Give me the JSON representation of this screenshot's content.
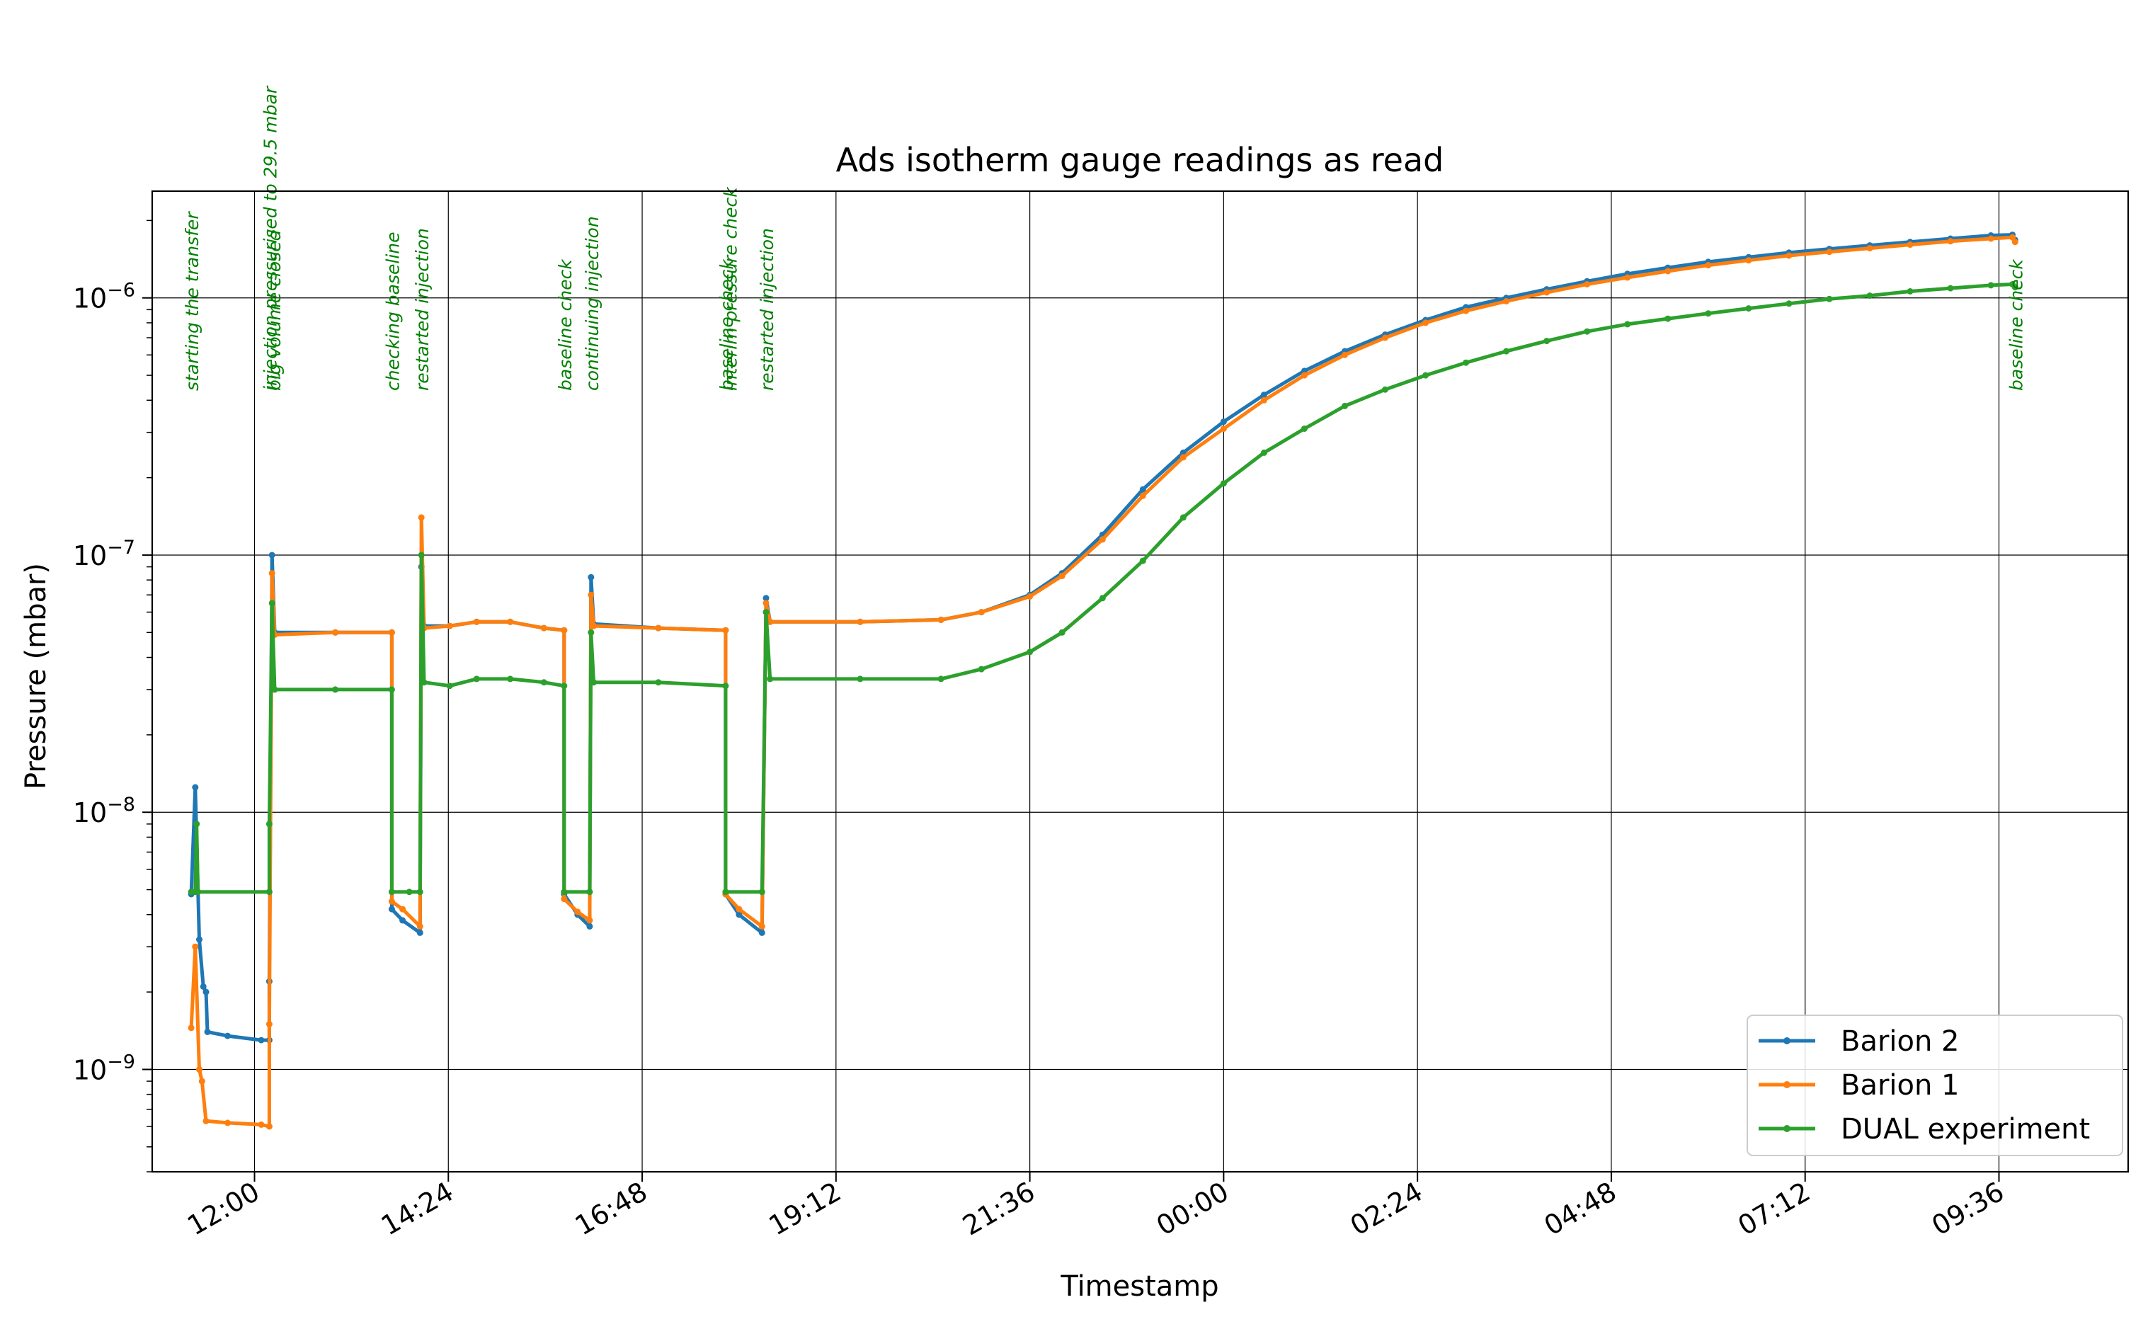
{
  "chart_data": {
    "type": "line",
    "title": "Ads isotherm gauge readings as read",
    "xlabel": "Timestamp",
    "ylabel": "Pressure (mbar)",
    "y_scale": "log",
    "ylim": [
      4e-10,
      2.6e-06
    ],
    "xlim": [
      "10:44",
      "11:12 (+1 day)"
    ],
    "x_ticks": [
      "12:00",
      "14:24",
      "16:48",
      "19:12",
      "21:36",
      "00:00",
      "02:24",
      "04:48",
      "07:12",
      "09:36"
    ],
    "y_ticks": [
      "10^-9",
      "10^-8",
      "10^-7",
      "10^-6"
    ],
    "grid": true,
    "legend": "lower-right",
    "series": [
      {
        "name": "Barion 2",
        "color": "#1f77b4",
        "points": [
          [
            "11:13",
            4.8e-09
          ],
          [
            "11:16",
            1.25e-08
          ],
          [
            "11:19",
            3.2e-09
          ],
          [
            "11:22",
            2.1e-09
          ],
          [
            "11:24",
            2e-09
          ],
          [
            "11:25",
            1.4e-09
          ],
          [
            "11:40",
            1.35e-09
          ],
          [
            "12:05",
            1.3e-09
          ],
          [
            "12:11",
            1.3e-09
          ],
          [
            "12:11",
            2.2e-09
          ],
          [
            "12:13",
            1e-07
          ],
          [
            "12:15",
            5e-08
          ],
          [
            "13:00",
            5e-08
          ],
          [
            "13:42",
            5e-08
          ],
          [
            "13:42",
            4.2e-09
          ],
          [
            "13:50",
            3.8e-09
          ],
          [
            "14:03",
            3.4e-09
          ],
          [
            "14:04",
            9e-08
          ],
          [
            "14:06",
            5.3e-08
          ],
          [
            "14:25",
            5.3e-08
          ],
          [
            "14:45",
            5.5e-08
          ],
          [
            "15:10",
            5.5e-08
          ],
          [
            "15:35",
            5.2e-08
          ],
          [
            "15:50",
            5.1e-08
          ],
          [
            "15:50",
            4.8e-09
          ],
          [
            "16:00",
            4e-09
          ],
          [
            "16:09",
            3.6e-09
          ],
          [
            "16:10",
            8.2e-08
          ],
          [
            "16:12",
            5.4e-08
          ],
          [
            "17:00",
            5.2e-08
          ],
          [
            "17:50",
            5.1e-08
          ],
          [
            "17:50",
            4.8e-09
          ],
          [
            "18:00",
            4e-09
          ],
          [
            "18:17",
            3.4e-09
          ],
          [
            "18:20",
            6.8e-08
          ],
          [
            "18:23",
            5.5e-08
          ],
          [
            "19:30",
            5.5e-08
          ],
          [
            "20:30",
            5.6e-08
          ],
          [
            "21:00",
            6e-08
          ],
          [
            "21:36",
            7e-08
          ],
          [
            "22:00",
            8.5e-08
          ],
          [
            "22:30",
            1.2e-07
          ],
          [
            "23:00",
            1.8e-07
          ],
          [
            "23:30",
            2.5e-07
          ],
          [
            "00:00",
            3.3e-07
          ],
          [
            "00:30",
            4.2e-07
          ],
          [
            "01:00",
            5.2e-07
          ],
          [
            "01:30",
            6.2e-07
          ],
          [
            "02:00",
            7.2e-07
          ],
          [
            "02:30",
            8.2e-07
          ],
          [
            "03:00",
            9.2e-07
          ],
          [
            "03:30",
            1e-06
          ],
          [
            "04:00",
            1.08e-06
          ],
          [
            "04:30",
            1.16e-06
          ],
          [
            "05:00",
            1.24e-06
          ],
          [
            "05:30",
            1.31e-06
          ],
          [
            "06:00",
            1.38e-06
          ],
          [
            "06:30",
            1.44e-06
          ],
          [
            "07:00",
            1.5e-06
          ],
          [
            "07:30",
            1.55e-06
          ],
          [
            "08:00",
            1.6e-06
          ],
          [
            "08:30",
            1.65e-06
          ],
          [
            "09:00",
            1.7e-06
          ],
          [
            "09:30",
            1.75e-06
          ],
          [
            "09:46",
            1.76e-06
          ],
          [
            "09:48",
            1.68e-06
          ]
        ]
      },
      {
        "name": "Barion 1",
        "color": "#ff7f0e",
        "points": [
          [
            "11:13",
            1.45e-09
          ],
          [
            "11:16",
            3e-09
          ],
          [
            "11:19",
            1e-09
          ],
          [
            "11:21",
            9e-10
          ],
          [
            "11:24",
            6.3e-10
          ],
          [
            "11:40",
            6.2e-10
          ],
          [
            "12:05",
            6.1e-10
          ],
          [
            "12:11",
            6e-10
          ],
          [
            "12:11",
            1.5e-09
          ],
          [
            "12:13",
            8.5e-08
          ],
          [
            "12:15",
            4.9e-08
          ],
          [
            "13:00",
            5e-08
          ],
          [
            "13:42",
            5e-08
          ],
          [
            "13:42",
            4.5e-09
          ],
          [
            "13:50",
            4.2e-09
          ],
          [
            "14:03",
            3.6e-09
          ],
          [
            "14:04",
            1.4e-07
          ],
          [
            "14:06",
            5.2e-08
          ],
          [
            "14:25",
            5.3e-08
          ],
          [
            "14:45",
            5.5e-08
          ],
          [
            "15:10",
            5.5e-08
          ],
          [
            "15:35",
            5.2e-08
          ],
          [
            "15:50",
            5.1e-08
          ],
          [
            "15:50",
            4.6e-09
          ],
          [
            "16:00",
            4.1e-09
          ],
          [
            "16:09",
            3.8e-09
          ],
          [
            "16:10",
            7e-08
          ],
          [
            "16:12",
            5.3e-08
          ],
          [
            "17:00",
            5.2e-08
          ],
          [
            "17:50",
            5.1e-08
          ],
          [
            "17:50",
            4.8e-09
          ],
          [
            "18:00",
            4.2e-09
          ],
          [
            "18:17",
            3.6e-09
          ],
          [
            "18:20",
            6.5e-08
          ],
          [
            "18:23",
            5.5e-08
          ],
          [
            "19:30",
            5.5e-08
          ],
          [
            "20:30",
            5.6e-08
          ],
          [
            "21:00",
            6e-08
          ],
          [
            "21:36",
            6.9e-08
          ],
          [
            "22:00",
            8.3e-08
          ],
          [
            "22:30",
            1.15e-07
          ],
          [
            "23:00",
            1.7e-07
          ],
          [
            "23:30",
            2.4e-07
          ],
          [
            "00:00",
            3.1e-07
          ],
          [
            "00:30",
            4e-07
          ],
          [
            "01:00",
            5e-07
          ],
          [
            "01:30",
            6e-07
          ],
          [
            "02:00",
            7e-07
          ],
          [
            "02:30",
            8e-07
          ],
          [
            "03:00",
            8.9e-07
          ],
          [
            "03:30",
            9.7e-07
          ],
          [
            "04:00",
            1.05e-06
          ],
          [
            "04:30",
            1.13e-06
          ],
          [
            "05:00",
            1.2e-06
          ],
          [
            "05:30",
            1.27e-06
          ],
          [
            "06:00",
            1.34e-06
          ],
          [
            "06:30",
            1.4e-06
          ],
          [
            "07:00",
            1.46e-06
          ],
          [
            "07:30",
            1.51e-06
          ],
          [
            "08:00",
            1.56e-06
          ],
          [
            "08:30",
            1.61e-06
          ],
          [
            "09:00",
            1.66e-06
          ],
          [
            "09:30",
            1.7e-06
          ],
          [
            "09:46",
            1.72e-06
          ],
          [
            "09:48",
            1.65e-06
          ]
        ]
      },
      {
        "name": "DUAL experiment",
        "color": "#2ca02c",
        "points": [
          [
            "11:13",
            4.9e-09
          ],
          [
            "11:16",
            4.9e-09
          ],
          [
            "11:17",
            9e-09
          ],
          [
            "11:18",
            4.9e-09
          ],
          [
            "12:11",
            4.9e-09
          ],
          [
            "12:11",
            9e-09
          ],
          [
            "12:13",
            6.5e-08
          ],
          [
            "12:15",
            3e-08
          ],
          [
            "13:00",
            3e-08
          ],
          [
            "13:42",
            3e-08
          ],
          [
            "13:42",
            4.9e-09
          ],
          [
            "13:55",
            4.9e-09
          ],
          [
            "14:03",
            4.9e-09
          ],
          [
            "14:04",
            1e-07
          ],
          [
            "14:06",
            3.2e-08
          ],
          [
            "14:25",
            3.1e-08
          ],
          [
            "14:45",
            3.3e-08
          ],
          [
            "15:10",
            3.3e-08
          ],
          [
            "15:35",
            3.2e-08
          ],
          [
            "15:50",
            3.1e-08
          ],
          [
            "15:50",
            4.9e-09
          ],
          [
            "16:09",
            4.9e-09
          ],
          [
            "16:10",
            5e-08
          ],
          [
            "16:12",
            3.2e-08
          ],
          [
            "17:00",
            3.2e-08
          ],
          [
            "17:50",
            3.1e-08
          ],
          [
            "17:50",
            4.9e-09
          ],
          [
            "18:17",
            4.9e-09
          ],
          [
            "18:20",
            6e-08
          ],
          [
            "18:23",
            3.3e-08
          ],
          [
            "19:30",
            3.3e-08
          ],
          [
            "20:30",
            3.3e-08
          ],
          [
            "21:00",
            3.6e-08
          ],
          [
            "21:36",
            4.2e-08
          ],
          [
            "22:00",
            5e-08
          ],
          [
            "22:30",
            6.8e-08
          ],
          [
            "23:00",
            9.5e-08
          ],
          [
            "23:30",
            1.4e-07
          ],
          [
            "00:00",
            1.9e-07
          ],
          [
            "00:30",
            2.5e-07
          ],
          [
            "01:00",
            3.1e-07
          ],
          [
            "01:30",
            3.8e-07
          ],
          [
            "02:00",
            4.4e-07
          ],
          [
            "02:30",
            5e-07
          ],
          [
            "03:00",
            5.6e-07
          ],
          [
            "03:30",
            6.2e-07
          ],
          [
            "04:00",
            6.8e-07
          ],
          [
            "04:30",
            7.4e-07
          ],
          [
            "05:00",
            7.9e-07
          ],
          [
            "05:30",
            8.3e-07
          ],
          [
            "06:00",
            8.7e-07
          ],
          [
            "06:30",
            9.1e-07
          ],
          [
            "07:00",
            9.5e-07
          ],
          [
            "07:30",
            9.9e-07
          ],
          [
            "08:00",
            1.02e-06
          ],
          [
            "08:30",
            1.06e-06
          ],
          [
            "09:00",
            1.09e-06
          ],
          [
            "09:30",
            1.12e-06
          ],
          [
            "09:46",
            1.13e-06
          ],
          [
            "09:48",
            1.1e-06
          ]
        ]
      }
    ],
    "annotations": [
      {
        "time": "11:13",
        "text": "starting the transfer"
      },
      {
        "time": "12:11",
        "text": "injection pressurised to 29.5 mbar"
      },
      {
        "time": "12:14",
        "text": "big volume closed"
      },
      {
        "time": "13:42",
        "text": "checking baseline"
      },
      {
        "time": "14:04",
        "text": "restarted injection"
      },
      {
        "time": "15:50",
        "text": "baseline check"
      },
      {
        "time": "16:10",
        "text": "continuing injection"
      },
      {
        "time": "17:50",
        "text": "baseline check"
      },
      {
        "time": "17:53",
        "text": "interim pressure check"
      },
      {
        "time": "18:20",
        "text": "restarted injection"
      },
      {
        "time": "09:48",
        "text": "baseline check"
      }
    ],
    "annotation_color": "#008000"
  }
}
